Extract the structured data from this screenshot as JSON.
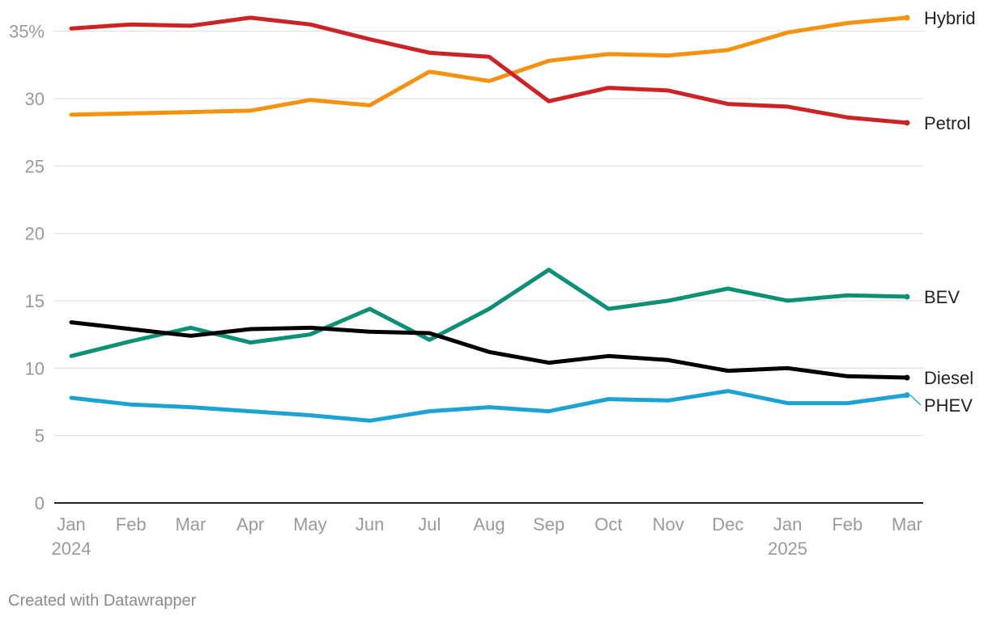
{
  "footer": {
    "credit": "Created with Datawrapper"
  },
  "colors": {
    "gridline": "#e3e3e3",
    "baseline": "#222222",
    "tick_label": "#9a9a9a",
    "series_label": "#222222",
    "footer_text": "#8a8a8a"
  },
  "chart_data": {
    "type": "line",
    "title": "",
    "xlabel": "",
    "ylabel": "",
    "ylim": [
      0,
      36
    ],
    "y_ticks": [
      {
        "value": 0,
        "label": "0"
      },
      {
        "value": 5,
        "label": "5"
      },
      {
        "value": 10,
        "label": "10"
      },
      {
        "value": 15,
        "label": "15"
      },
      {
        "value": 20,
        "label": "20"
      },
      {
        "value": 25,
        "label": "25"
      },
      {
        "value": 30,
        "label": "30"
      },
      {
        "value": 35,
        "label": "35%"
      }
    ],
    "categories": [
      "Jan",
      "Feb",
      "Mar",
      "Apr",
      "May",
      "Jun",
      "Jul",
      "Aug",
      "Sep",
      "Oct",
      "Nov",
      "Dec",
      "Jan",
      "Feb",
      "Mar"
    ],
    "year_labels": [
      {
        "index": 0,
        "label": "2024"
      },
      {
        "index": 12,
        "label": "2025"
      }
    ],
    "grid": true,
    "legend": "direct labels at right end of each line",
    "series": [
      {
        "name": "Hybrid",
        "color": "#f5920f",
        "values": [
          28.8,
          28.9,
          29.0,
          29.1,
          29.9,
          29.5,
          32.0,
          31.3,
          32.8,
          33.3,
          33.2,
          33.6,
          34.9,
          35.6,
          36.0
        ]
      },
      {
        "name": "Petrol",
        "color": "#cc2424",
        "values": [
          35.2,
          35.5,
          35.4,
          36.0,
          35.5,
          34.4,
          33.4,
          33.1,
          29.8,
          30.8,
          30.6,
          29.6,
          29.4,
          28.6,
          28.2
        ]
      },
      {
        "name": "BEV",
        "color": "#0c9076",
        "values": [
          10.9,
          12.0,
          13.0,
          11.9,
          12.5,
          14.4,
          12.1,
          14.4,
          17.3,
          14.4,
          15.0,
          15.9,
          15.0,
          15.4,
          15.3
        ]
      },
      {
        "name": "Diesel",
        "color": "#000000",
        "values": [
          13.4,
          12.9,
          12.4,
          12.9,
          13.0,
          12.7,
          12.6,
          11.2,
          10.4,
          10.9,
          10.6,
          9.8,
          10.0,
          9.4,
          9.3
        ]
      },
      {
        "name": "PHEV",
        "color": "#1ca3d4",
        "values": [
          7.8,
          7.3,
          7.1,
          6.8,
          6.5,
          6.1,
          6.8,
          7.1,
          6.8,
          7.7,
          7.6,
          8.3,
          7.4,
          7.4,
          8.0
        ]
      }
    ]
  }
}
